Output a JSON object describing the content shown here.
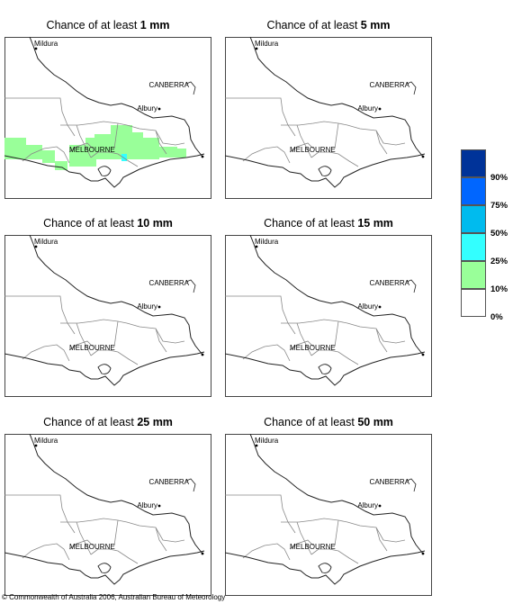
{
  "panels": [
    {
      "title_prefix": "Chance of at least ",
      "amount": "1 mm"
    },
    {
      "title_prefix": "Chance of at least ",
      "amount": "5 mm"
    },
    {
      "title_prefix": "Chance of at least ",
      "amount": "10 mm"
    },
    {
      "title_prefix": "Chance of at least ",
      "amount": "15 mm"
    },
    {
      "title_prefix": "Chance of at least ",
      "amount": "25 mm"
    },
    {
      "title_prefix": "Chance of at least ",
      "amount": "50 mm"
    }
  ],
  "map_labels": {
    "mildura": "Mildura",
    "canberra": "CANBERRA",
    "albury": "Albury",
    "melbourne": "MELBOURNE"
  },
  "legend": {
    "labels": [
      "90%",
      "75%",
      "50%",
      "25%",
      "10%",
      "0%"
    ],
    "colors": [
      "#003399",
      "#0066ff",
      "#00bbee",
      "#33ffff",
      "#99ff99",
      "#ffffff"
    ]
  },
  "copyright": "© Commonwealth of Australia 2006, Australian Bureau of Meteorology"
}
